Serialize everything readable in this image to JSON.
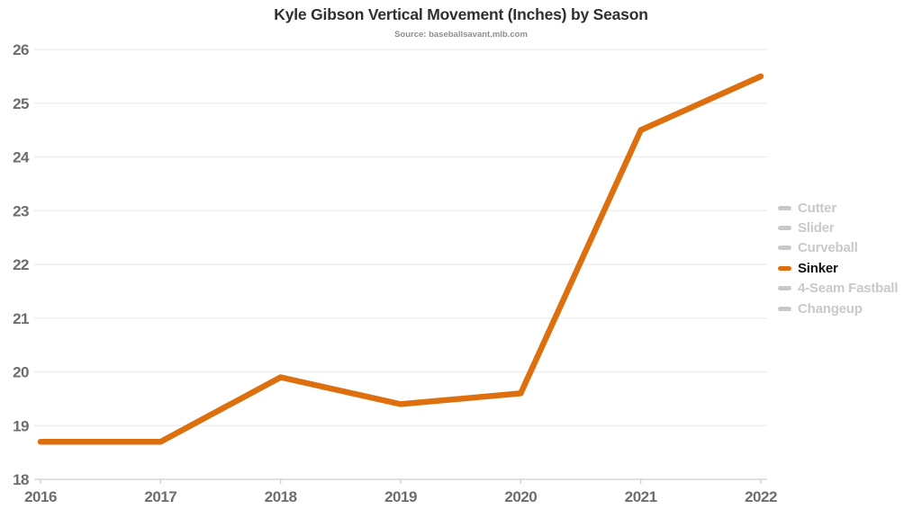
{
  "chart_data": {
    "type": "line",
    "title": "Kyle Gibson Vertical Movement (Inches) by Season",
    "subtitle": "Source: baseballsavant.mlb.com",
    "x": [
      2016,
      2017,
      2018,
      2019,
      2020,
      2021,
      2022
    ],
    "series": [
      {
        "name": "Sinker",
        "values": [
          18.7,
          18.7,
          19.9,
          19.4,
          19.6,
          24.5,
          25.5
        ],
        "color": "#DE6F0E",
        "active": true
      }
    ],
    "legend": [
      {
        "label": "Cutter",
        "active": false
      },
      {
        "label": "Slider",
        "active": false
      },
      {
        "label": "Curveball",
        "active": false
      },
      {
        "label": "Sinker",
        "active": true
      },
      {
        "label": "4-Seam Fastball",
        "active": false
      },
      {
        "label": "Changeup",
        "active": false
      }
    ],
    "legend_position": "right",
    "xlabel": "",
    "ylabel": "",
    "ylim": [
      18,
      26
    ],
    "ytick_step": 1,
    "grid": true
  },
  "colors": {
    "accent_orange": "#DE6F0E",
    "inactive_gray": "#C9C9C9",
    "active_label": "#111111",
    "gridline": "#EBEBEB",
    "axis_line": "#CDCDCD",
    "tick_label": "#6D6D6D"
  }
}
